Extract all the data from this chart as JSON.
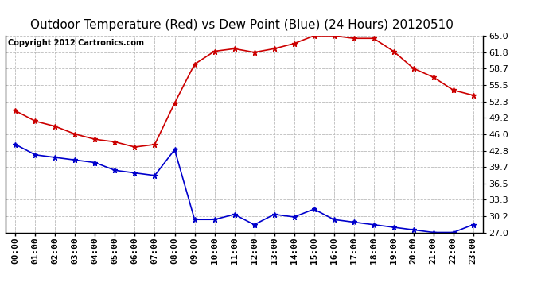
{
  "title": "Outdoor Temperature (Red) vs Dew Point (Blue) (24 Hours) 20120510",
  "copyright_text": "Copyright 2012 Cartronics.com",
  "x_labels": [
    "00:00",
    "01:00",
    "02:00",
    "03:00",
    "04:00",
    "05:00",
    "06:00",
    "07:00",
    "08:00",
    "09:00",
    "10:00",
    "11:00",
    "12:00",
    "13:00",
    "14:00",
    "15:00",
    "16:00",
    "17:00",
    "18:00",
    "19:00",
    "20:00",
    "21:00",
    "22:00",
    "23:00"
  ],
  "temp_red": [
    50.5,
    48.5,
    47.5,
    46.0,
    45.0,
    44.5,
    43.5,
    44.0,
    52.0,
    59.5,
    62.0,
    62.5,
    61.8,
    62.5,
    63.5,
    65.0,
    65.0,
    64.5,
    64.5,
    62.0,
    58.7,
    57.0,
    54.5,
    53.5
  ],
  "dew_blue": [
    44.0,
    42.0,
    41.5,
    41.0,
    40.5,
    39.0,
    38.5,
    38.0,
    43.0,
    29.5,
    29.5,
    30.5,
    28.5,
    30.5,
    30.0,
    31.5,
    29.5,
    29.0,
    28.5,
    28.0,
    27.5,
    27.0,
    27.0,
    28.5
  ],
  "y_ticks": [
    27.0,
    30.2,
    33.3,
    36.5,
    39.7,
    42.8,
    46.0,
    49.2,
    52.3,
    55.5,
    58.7,
    61.8,
    65.0
  ],
  "ylim": [
    27.0,
    65.0
  ],
  "red_color": "#cc0000",
  "blue_color": "#0000cc",
  "grid_color": "#bbbbbb",
  "bg_color": "#ffffff",
  "title_fontsize": 11,
  "copyright_fontsize": 7,
  "tick_fontsize": 8
}
